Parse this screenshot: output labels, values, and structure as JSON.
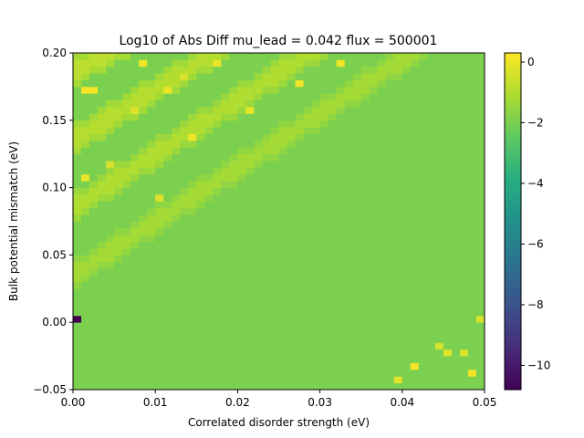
{
  "chart_data": {
    "type": "heatmap",
    "title": "Log10 of Abs Diff mu_lead = 0.042 flux = 500001",
    "xlabel": "Correlated disorder strength (eV)",
    "ylabel": "Bulk potential mismatch (eV)",
    "xlim": [
      0.0,
      0.05
    ],
    "ylim": [
      -0.05,
      0.2
    ],
    "x_ticks": [
      "0.00",
      "0.01",
      "0.02",
      "0.03",
      "0.04",
      "0.05"
    ],
    "y_ticks": [
      "−0.05",
      "0.00",
      "0.05",
      "0.10",
      "0.15",
      "0.20"
    ],
    "grid": {
      "nx": 50,
      "ny": 50
    },
    "colormap": "viridis",
    "colorbar": {
      "range": [
        -10.8,
        0.3
      ],
      "ticks": [
        "0",
        "−2",
        "−4",
        "−6",
        "−8",
        "−10"
      ]
    },
    "background_value": -1.9,
    "diagonal_bands": [
      {
        "intercept": 0.035,
        "slope": 4.0,
        "value": -1.2
      },
      {
        "intercept": 0.085,
        "slope": 4.0,
        "value": -1.0
      },
      {
        "intercept": 0.135,
        "slope": 3.8,
        "value": -0.9
      },
      {
        "intercept": 0.185,
        "slope": 3.5,
        "value": -0.8
      }
    ],
    "hot_cells": [
      {
        "x": 0.0015,
        "y": 0.1745,
        "value": 0.2
      },
      {
        "x": 0.0025,
        "y": 0.1745,
        "value": 0.2
      },
      {
        "x": 0.0015,
        "y": 0.1095,
        "value": 0.0
      },
      {
        "x": 0.0145,
        "y": 0.1395,
        "value": 0.1
      },
      {
        "x": 0.0115,
        "y": 0.1745,
        "value": 0.0
      },
      {
        "x": 0.0085,
        "y": 0.1945,
        "value": 0.1
      },
      {
        "x": 0.0175,
        "y": 0.1945,
        "value": 0.0
      },
      {
        "x": 0.0135,
        "y": 0.1845,
        "value": -0.3
      },
      {
        "x": 0.0275,
        "y": 0.1795,
        "value": 0.1
      },
      {
        "x": 0.0325,
        "y": 0.1945,
        "value": 0.1
      },
      {
        "x": 0.0215,
        "y": 0.1595,
        "value": 0.0
      },
      {
        "x": 0.0105,
        "y": 0.0945,
        "value": -0.2
      },
      {
        "x": 0.0075,
        "y": 0.1595,
        "value": -0.2
      },
      {
        "x": 0.0045,
        "y": 0.1195,
        "value": -0.4
      },
      {
        "x": 0.0395,
        "y": -0.0405,
        "value": -0.2
      },
      {
        "x": 0.0415,
        "y": -0.0305,
        "value": 0.1
      },
      {
        "x": 0.0455,
        "y": -0.0205,
        "value": -0.2
      },
      {
        "x": 0.0485,
        "y": -0.0355,
        "value": 0.1
      },
      {
        "x": 0.0475,
        "y": -0.0205,
        "value": -0.3
      },
      {
        "x": 0.0445,
        "y": -0.0155,
        "value": -0.4
      },
      {
        "x": 0.0495,
        "y": 0.0045,
        "value": -0.3
      }
    ],
    "min_cell": {
      "x": 0.0005,
      "y": 0.0015,
      "value": -10.8
    }
  }
}
